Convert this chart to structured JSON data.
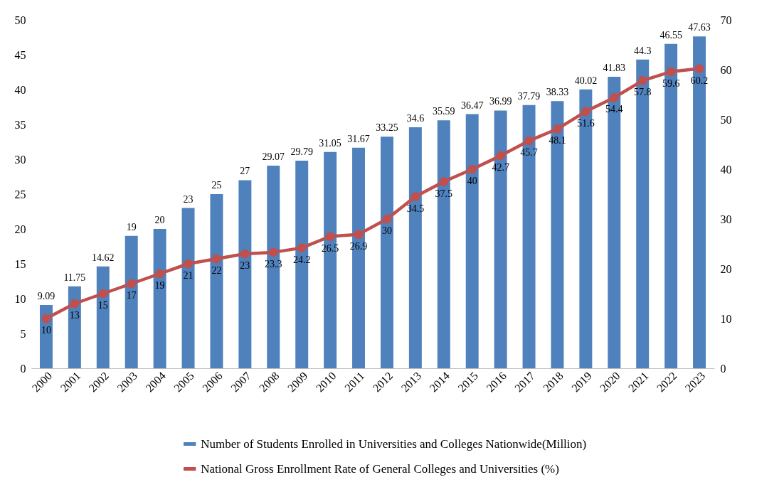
{
  "chart_data": {
    "type": "bar",
    "categories": [
      "2000",
      "2001",
      "2002",
      "2003",
      "2004",
      "2005",
      "2006",
      "2007",
      "2008",
      "2009",
      "2010",
      "2011",
      "2012",
      "2013",
      "2014",
      "2015",
      "2016",
      "2017",
      "2018",
      "2019",
      "2020",
      "2021",
      "2022",
      "2023"
    ],
    "series": [
      {
        "name": "Number of Students Enrolled in Universities and Colleges Nationwide(Million)",
        "color": "#4f81bd",
        "values": [
          9.09,
          11.75,
          14.62,
          19,
          20,
          23,
          25,
          27,
          29.07,
          29.79,
          31.05,
          31.67,
          33.25,
          34.6,
          35.59,
          36.47,
          36.99,
          37.79,
          38.33,
          40.02,
          41.83,
          44.3,
          46.55,
          47.63
        ]
      },
      {
        "name": "National Gross Enrollment Rate of General Colleges and Universities (%)",
        "type": "line",
        "axis": "y2",
        "color": "#c0504d",
        "marker": "circle",
        "values": [
          10,
          13,
          15,
          17,
          19,
          21,
          22,
          23,
          23.3,
          24.2,
          26.5,
          26.9,
          30,
          34.5,
          37.5,
          40,
          42.7,
          45.7,
          48.1,
          51.6,
          54.4,
          57.8,
          59.6,
          60.2
        ]
      }
    ],
    "ylim": [
      0,
      50
    ],
    "yticks": [
      0,
      5,
      10,
      15,
      20,
      25,
      30,
      35,
      40,
      45,
      50
    ],
    "y2lim": [
      0,
      70
    ],
    "y2ticks": [
      0,
      10,
      20,
      30,
      40,
      50,
      60,
      70
    ],
    "data_labels": true,
    "grid": false,
    "legend": "bottom"
  }
}
